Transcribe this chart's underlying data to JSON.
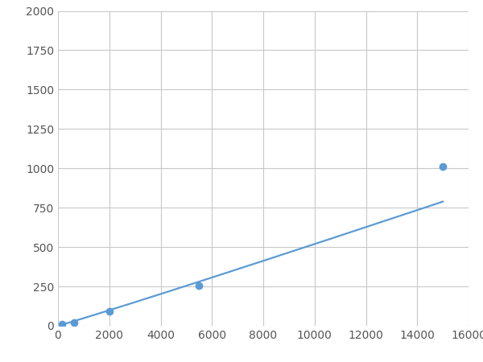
{
  "x_data": [
    156,
    625,
    2000,
    5500,
    15000
  ],
  "y_data": [
    10,
    20,
    90,
    255,
    1010
  ],
  "line_color": "#5b9bd5",
  "marker_color": "#5b9bd5",
  "marker_size": 6,
  "line_width": 1.6,
  "xlim": [
    0,
    16000
  ],
  "ylim": [
    0,
    2000
  ],
  "xticks": [
    0,
    2000,
    4000,
    6000,
    8000,
    10000,
    12000,
    14000,
    16000
  ],
  "yticks": [
    0,
    250,
    500,
    750,
    1000,
    1250,
    1500,
    1750,
    2000
  ],
  "grid_color": "#c8c8c8",
  "background_color": "#ffffff",
  "figsize": [
    6.0,
    4.5
  ],
  "dpi": 100
}
